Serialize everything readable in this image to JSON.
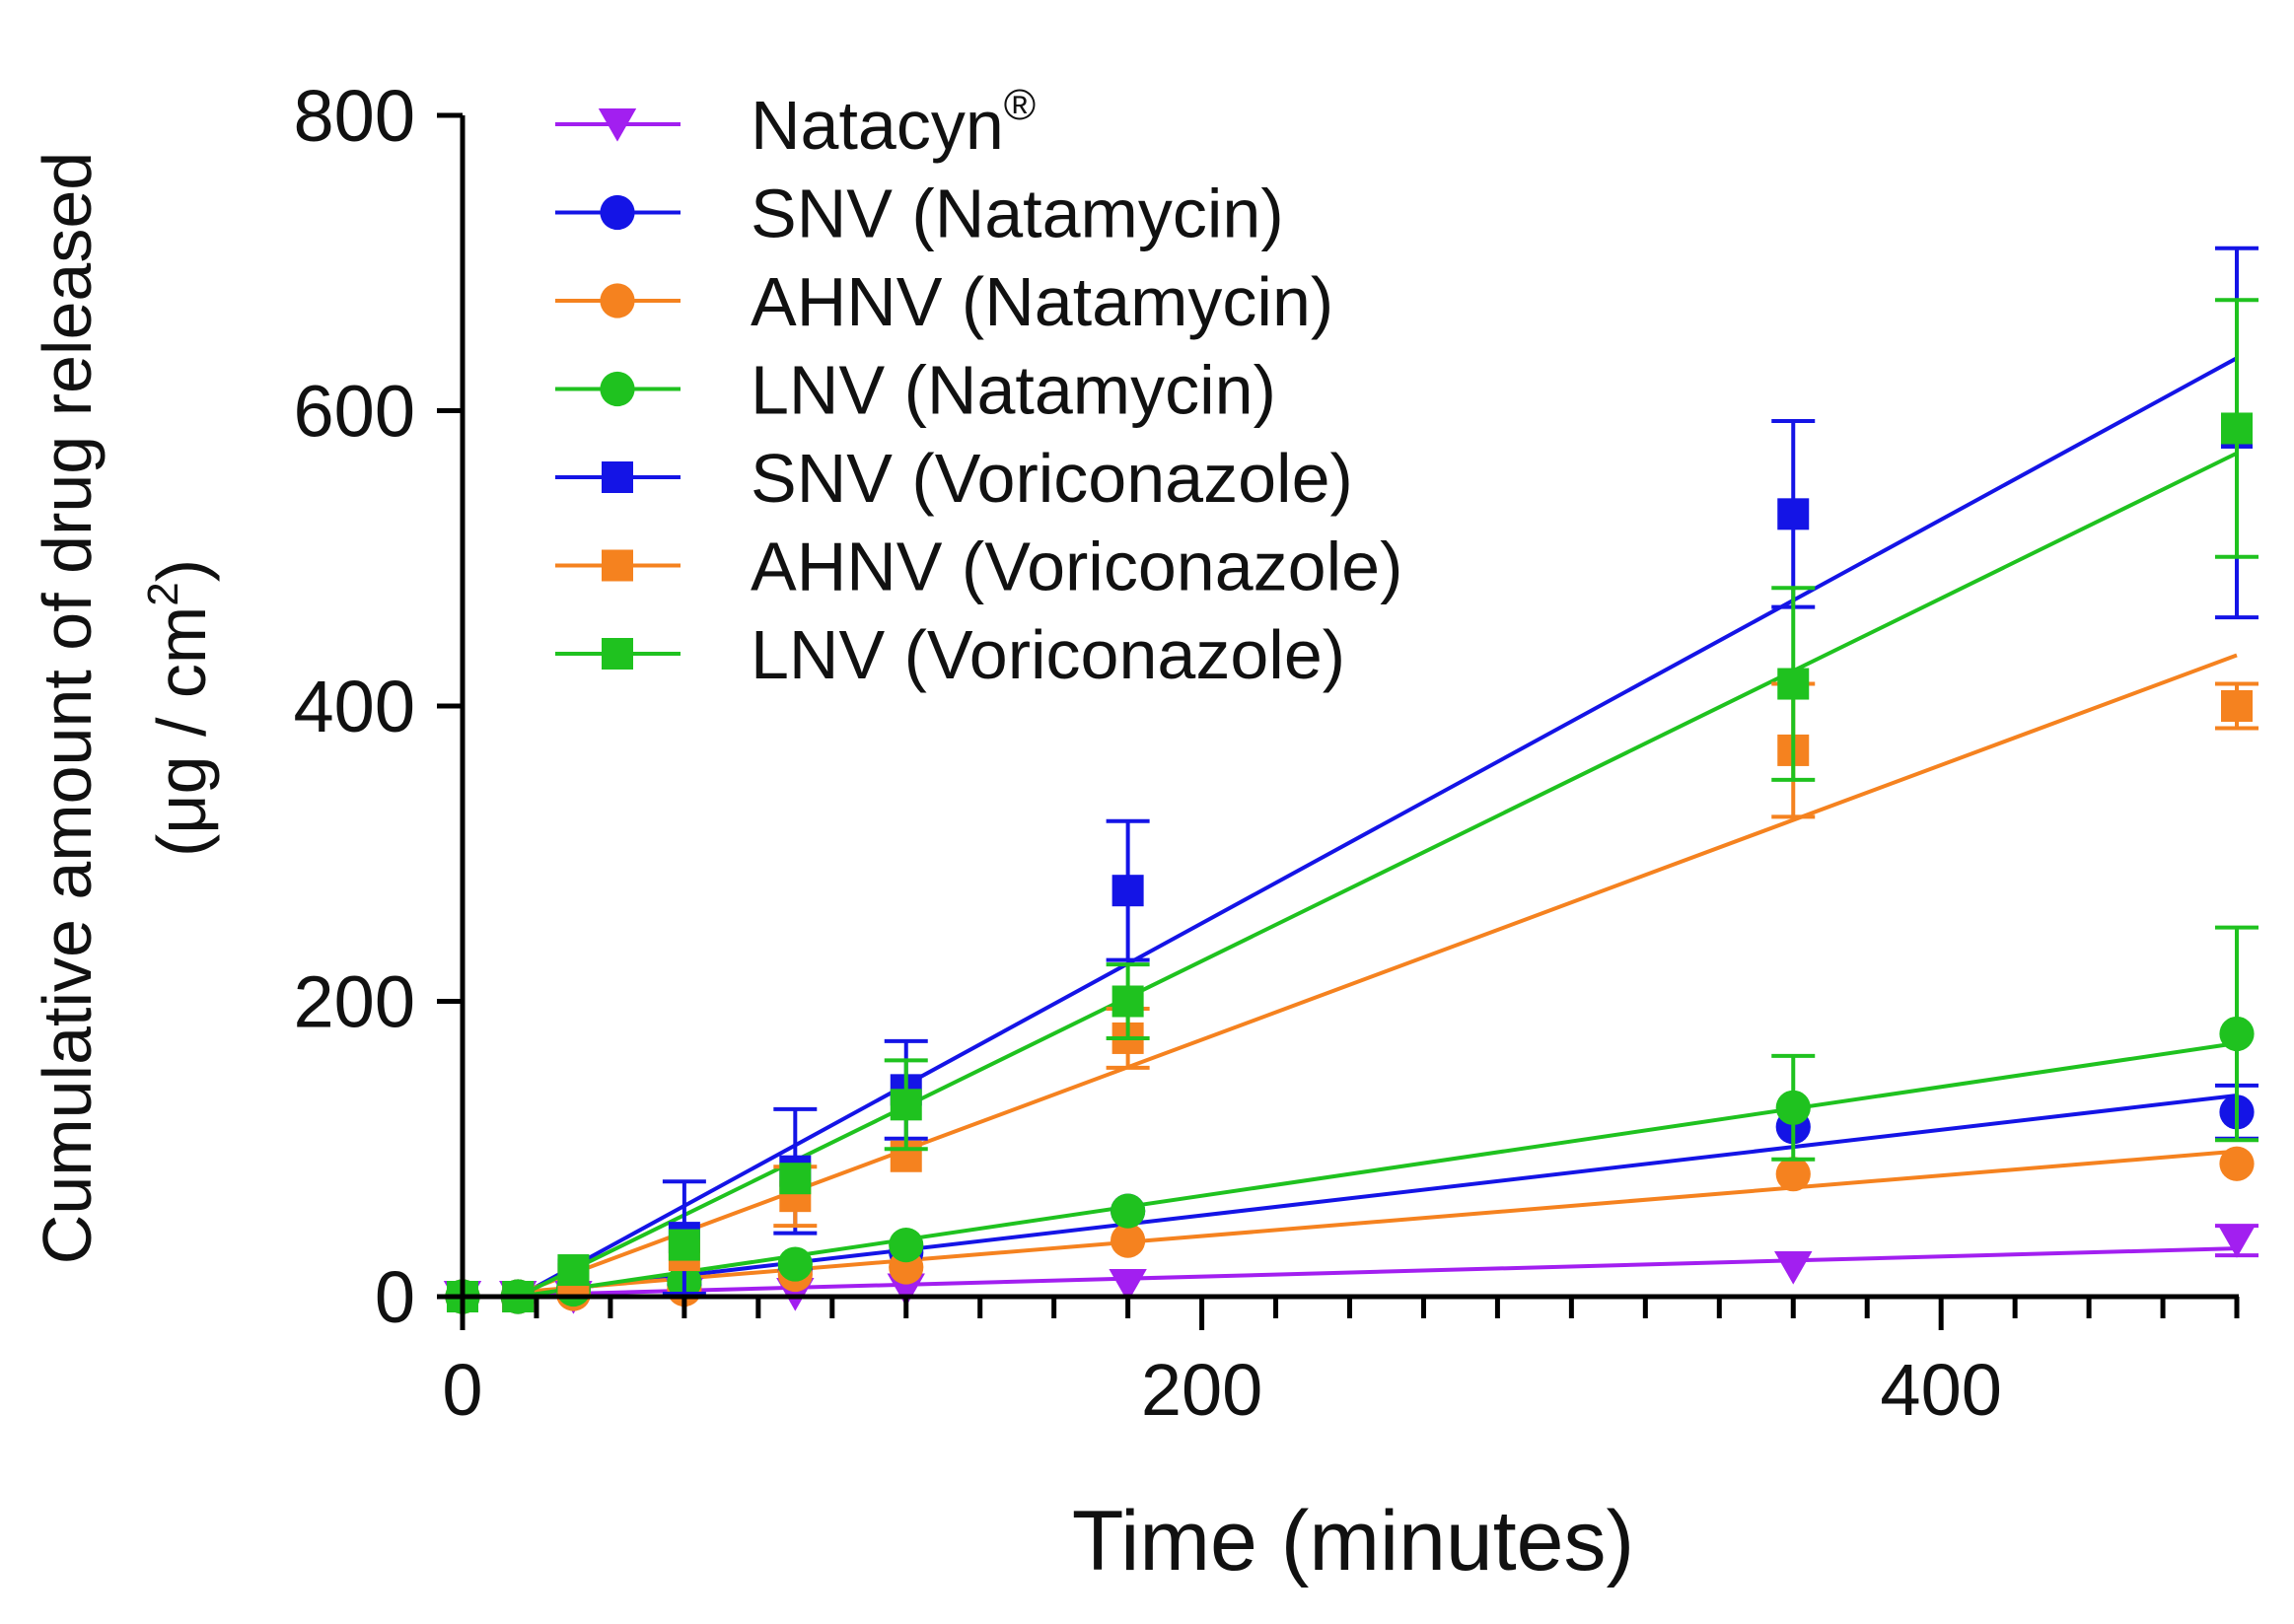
{
  "chart_data": {
    "type": "scatter",
    "title": "",
    "xlabel": "Time (minutes)",
    "ylabel_line1": "Cumulative amount of drug released",
    "ylabel_line2_prefix": "(μg / cm",
    "ylabel_line2_sup": "2",
    "ylabel_line2_suffix": ")",
    "xlim": [
      0,
      480
    ],
    "ylim": [
      0,
      800
    ],
    "xticks": [
      0,
      200,
      400
    ],
    "xtick_labels": [
      "0",
      "200",
      "400"
    ],
    "x_minor_step": 20,
    "yticks": [
      0,
      200,
      400,
      600,
      800
    ],
    "ytick_labels": [
      "0",
      "200",
      "400",
      "600",
      "800"
    ],
    "legend_position": "top-left",
    "x": [
      0,
      15,
      30,
      60,
      90,
      120,
      180,
      360,
      480
    ],
    "series": [
      {
        "name": "Natacyn",
        "name_sup": "®",
        "marker": "triangle-down",
        "color": "#a21ff0",
        "values": [
          0,
          0,
          0,
          2,
          2,
          5,
          8,
          20,
          38
        ],
        "errors": [
          0,
          0,
          0,
          0,
          0,
          0,
          0,
          0,
          10
        ],
        "fit": {
          "slope": 0.068,
          "intercept": 0,
          "from": 15
        }
      },
      {
        "name": "SNV (Natamycin)",
        "marker": "circle",
        "color": "#1414e6",
        "values": [
          0,
          0,
          3,
          8,
          18,
          30,
          58,
          115,
          125
        ],
        "errors": [
          0,
          0,
          0,
          0,
          0,
          0,
          0,
          0,
          18
        ],
        "fit": {
          "slope": 0.29,
          "intercept": -3,
          "from": 15
        }
      },
      {
        "name": "AHNV (Natamycin)",
        "marker": "circle",
        "color": "#f5821f",
        "values": [
          0,
          0,
          2,
          5,
          15,
          20,
          38,
          83,
          90
        ],
        "errors": [
          0,
          0,
          0,
          0,
          0,
          0,
          0,
          0,
          0
        ],
        "fit": {
          "slope": 0.205,
          "intercept": 0,
          "from": 15
        }
      },
      {
        "name": "LNV (Natamycin)",
        "marker": "circle",
        "color": "#1fc21f",
        "values": [
          0,
          0,
          5,
          10,
          22,
          35,
          58,
          128,
          178
        ],
        "errors": [
          0,
          0,
          0,
          0,
          0,
          0,
          0,
          35,
          72
        ],
        "fit": {
          "slope": 0.37,
          "intercept": -6,
          "from": 15
        }
      },
      {
        "name": "SNV (Voriconazole)",
        "marker": "square",
        "color": "#1414e6",
        "values": [
          0,
          0,
          15,
          40,
          85,
          140,
          275,
          530,
          585
        ],
        "errors": [
          0,
          0,
          0,
          38,
          42,
          33,
          47,
          63,
          125
        ],
        "fit": {
          "slope": 1.37,
          "intercept": -22,
          "from": 15
        }
      },
      {
        "name": "AHNV (Voriconazole)",
        "marker": "square",
        "color": "#f5821f",
        "values": [
          0,
          0,
          12,
          28,
          68,
          95,
          175,
          370,
          400
        ],
        "errors": [
          0,
          0,
          0,
          0,
          20,
          0,
          20,
          45,
          15
        ],
        "fit": {
          "slope": 0.93,
          "intercept": -12,
          "from": 15
        }
      },
      {
        "name": "LNV (Voriconazole)",
        "marker": "square",
        "color": "#1fc21f",
        "values": [
          0,
          0,
          18,
          35,
          80,
          130,
          200,
          415,
          588
        ],
        "errors": [
          0,
          0,
          0,
          0,
          0,
          30,
          25,
          65,
          87
        ],
        "fit": {
          "slope": 1.24,
          "intercept": -24,
          "from": 15
        }
      }
    ]
  }
}
